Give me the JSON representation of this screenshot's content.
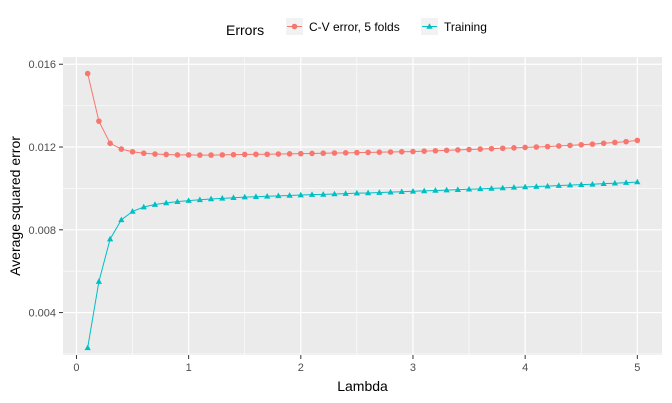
{
  "chart_data": {
    "type": "line",
    "xlabel": "Lambda",
    "ylabel": "Average squared error",
    "xlim": [
      -0.12,
      5.22
    ],
    "ylim": [
      0.00195,
      0.01635
    ],
    "x_ticks": [
      0,
      1,
      2,
      3,
      4,
      5
    ],
    "y_ticks": [
      0.004,
      0.008,
      0.012,
      0.016
    ],
    "x_tick_labels": [
      "0",
      "1",
      "2",
      "3",
      "4",
      "5"
    ],
    "y_tick_labels": [
      "0.004",
      "0.008",
      "0.012",
      "0.016"
    ],
    "grid": true,
    "legend": {
      "title": "Errors",
      "position": "top",
      "entries": [
        "C-V error, 5 folds",
        "Training"
      ]
    },
    "x": [
      0.1,
      0.2,
      0.3,
      0.4,
      0.5,
      0.6,
      0.7,
      0.8,
      0.9,
      1.0,
      1.1,
      1.2,
      1.3,
      1.4,
      1.5,
      1.6,
      1.7,
      1.8,
      1.9,
      2.0,
      2.1,
      2.2,
      2.3,
      2.4,
      2.5,
      2.6,
      2.7,
      2.8,
      2.9,
      3.0,
      3.1,
      3.2,
      3.3,
      3.4,
      3.5,
      3.6,
      3.7,
      3.8,
      3.9,
      4.0,
      4.1,
      4.2,
      4.3,
      4.4,
      4.5,
      4.6,
      4.7,
      4.8,
      4.9,
      5.0
    ],
    "series": [
      {
        "name": "C-V error, 5 folds",
        "color": "#F8766D",
        "marker": "circle",
        "values": [
          0.01555,
          0.01325,
          0.01218,
          0.0119,
          0.01177,
          0.0117,
          0.01166,
          0.01164,
          0.01162,
          0.01162,
          0.01161,
          0.01161,
          0.01162,
          0.01163,
          0.01164,
          0.01165,
          0.01165,
          0.01166,
          0.01167,
          0.01168,
          0.01169,
          0.0117,
          0.01171,
          0.01172,
          0.01173,
          0.01174,
          0.01175,
          0.01176,
          0.01177,
          0.01178,
          0.0118,
          0.01182,
          0.01184,
          0.01186,
          0.01188,
          0.0119,
          0.01192,
          0.01194,
          0.01196,
          0.01198,
          0.012,
          0.01202,
          0.01205,
          0.01208,
          0.01211,
          0.01214,
          0.01218,
          0.01222,
          0.01226,
          0.01232
        ]
      },
      {
        "name": "Training",
        "color": "#00BFC4",
        "marker": "triangle",
        "values": [
          0.0023,
          0.0055,
          0.00755,
          0.00848,
          0.00889,
          0.0091,
          0.00922,
          0.0093,
          0.00936,
          0.00941,
          0.00945,
          0.00949,
          0.00952,
          0.00955,
          0.00958,
          0.0096,
          0.00962,
          0.00964,
          0.00966,
          0.00968,
          0.0097,
          0.00971,
          0.00973,
          0.00975,
          0.00977,
          0.00978,
          0.0098,
          0.00982,
          0.00984,
          0.00986,
          0.00988,
          0.0099,
          0.00992,
          0.00994,
          0.00996,
          0.00998,
          0.01,
          0.01002,
          0.01005,
          0.01007,
          0.01009,
          0.01011,
          0.01014,
          0.01016,
          0.01018,
          0.0102,
          0.01023,
          0.01025,
          0.01028,
          0.01031
        ]
      }
    ]
  }
}
